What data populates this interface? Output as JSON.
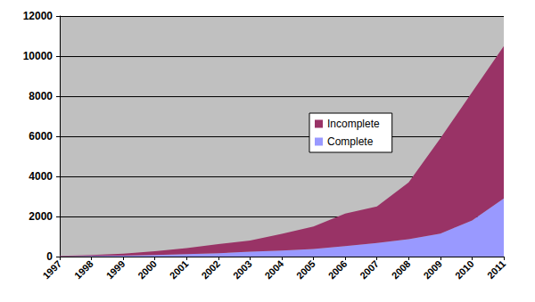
{
  "chart_data": {
    "type": "area",
    "categories": [
      "1997",
      "1998",
      "1999",
      "2000",
      "2001",
      "2002",
      "2003",
      "2004",
      "2005",
      "2006",
      "2007",
      "2008",
      "2009",
      "2010",
      "2011"
    ],
    "series": [
      {
        "name": "Incomplete",
        "color": "#993366",
        "values": [
          20,
          50,
          100,
          190,
          300,
          450,
          560,
          830,
          1120,
          1630,
          1820,
          2830,
          4750,
          6400,
          7600
        ]
      },
      {
        "name": "Complete",
        "color": "#9999ff",
        "values": [
          10,
          30,
          50,
          80,
          120,
          170,
          240,
          300,
          380,
          520,
          680,
          870,
          1150,
          1800,
          2900
        ]
      }
    ],
    "stacked": true,
    "ylim": [
      0,
      12000
    ],
    "yticks": [
      0,
      2000,
      4000,
      6000,
      8000,
      10000,
      12000
    ],
    "grid": true,
    "legend": "right"
  }
}
